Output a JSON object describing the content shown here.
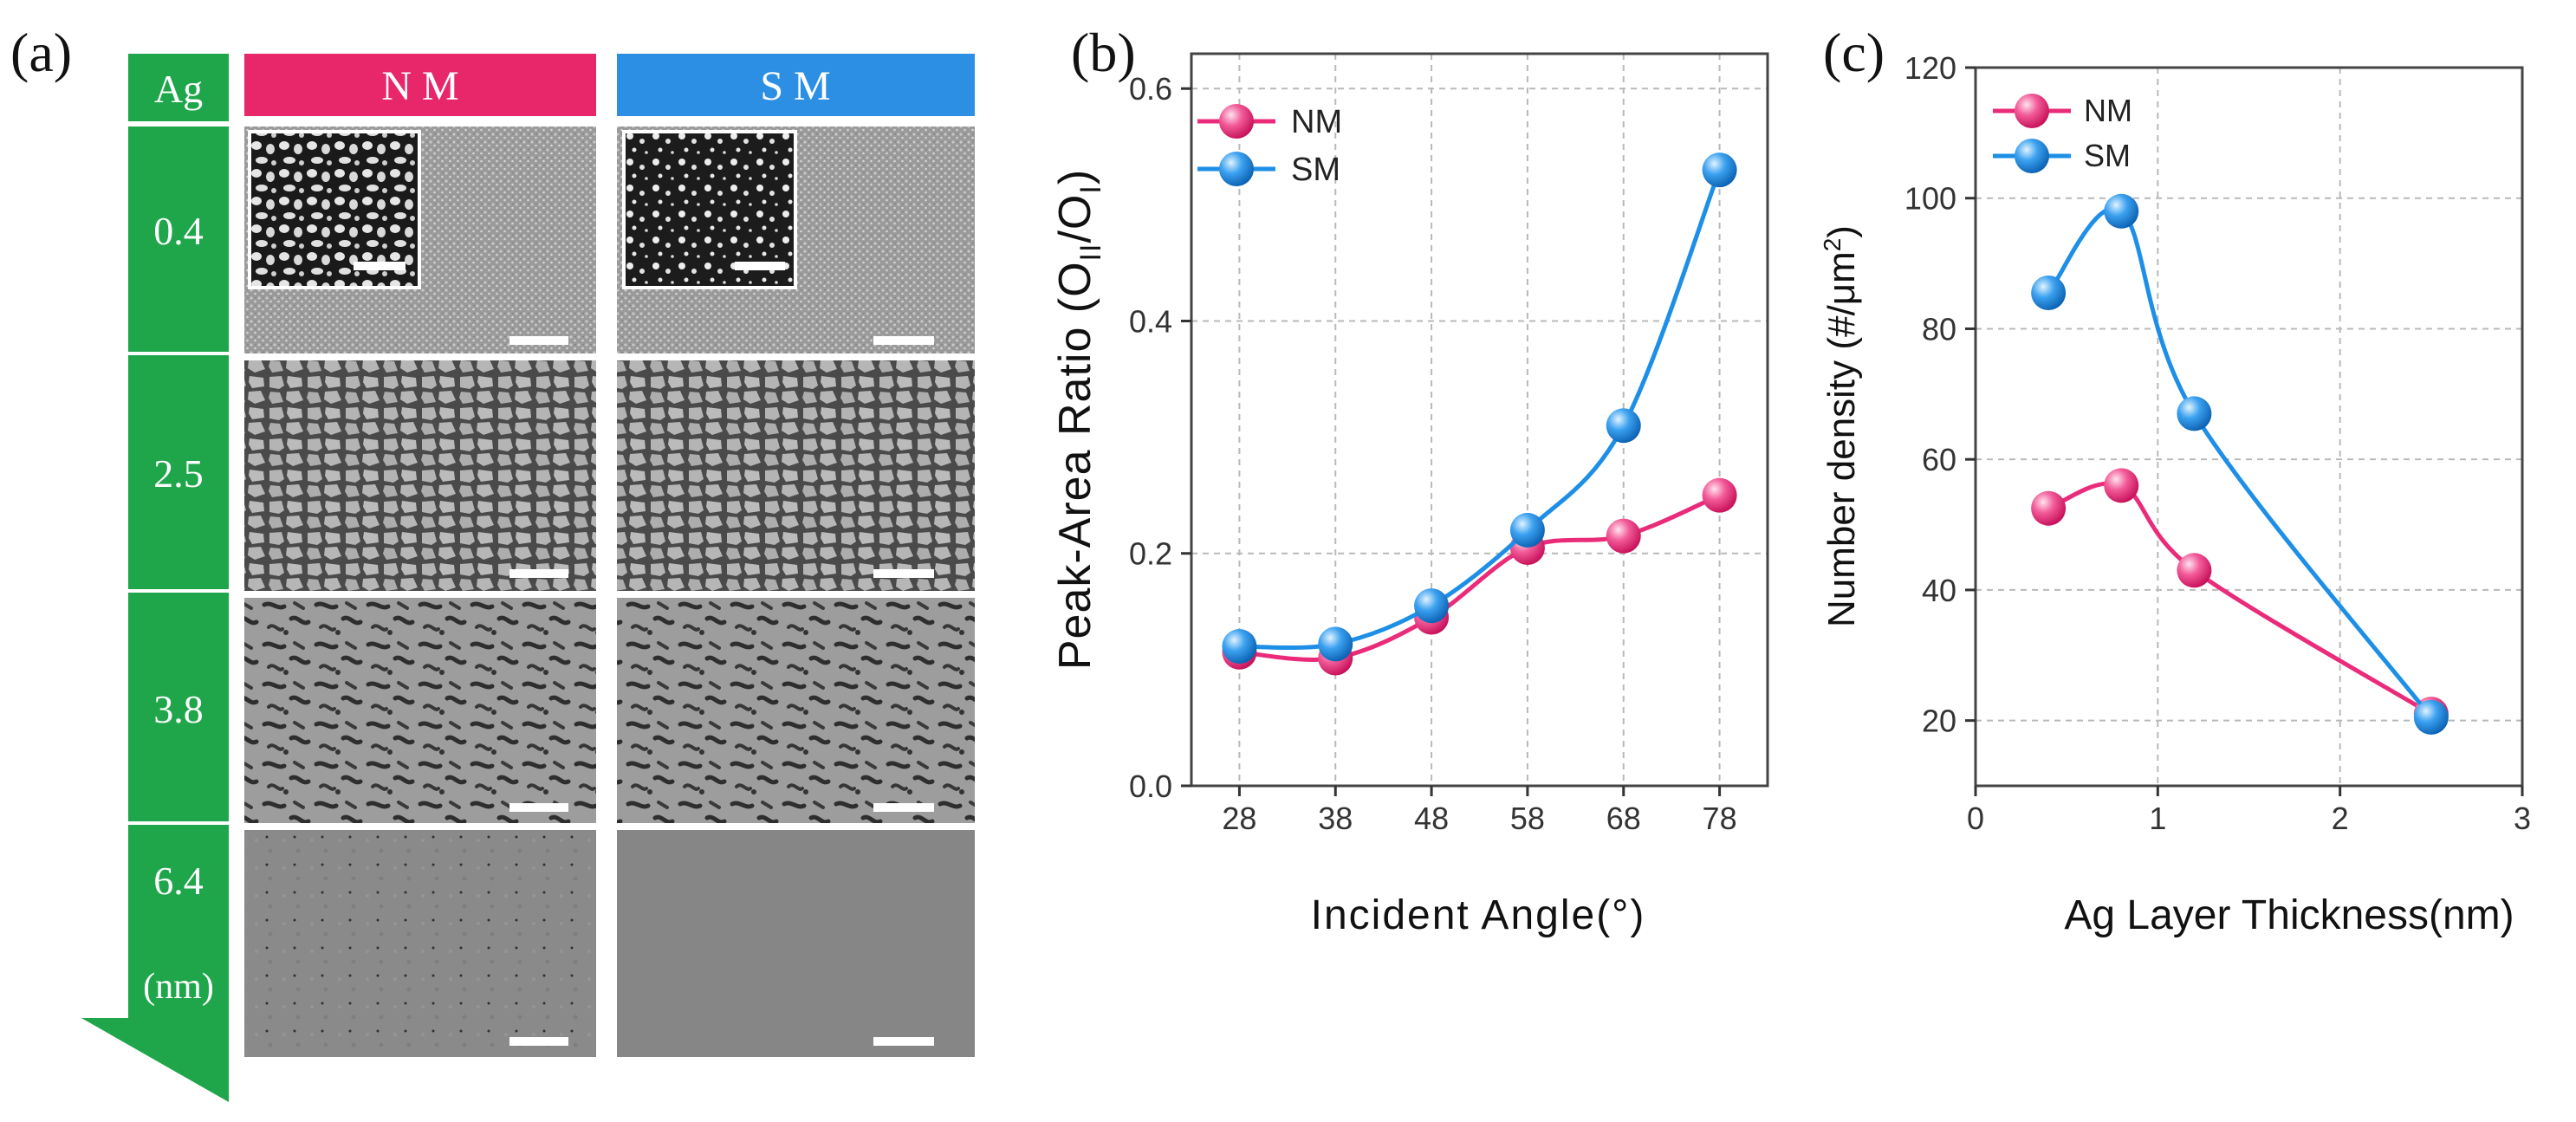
{
  "panel_a": {
    "label": "(a)",
    "ag_header": "Ag",
    "col_headers": [
      "N M",
      "S M"
    ],
    "thickness_labels": [
      "0.4",
      "2.5",
      "3.8",
      "6.4"
    ],
    "unit_label": "(nm)",
    "colors": {
      "green": "#1fa64a",
      "nm_header": "#e8276a",
      "sm_header": "#2d8fe3"
    }
  },
  "chart_data": [
    {
      "type": "line",
      "panel_label": "(b)",
      "xlabel": "Incident Angle(°)",
      "ylabel_main": "Peak-Area  Ratio (O",
      "ylabel_sub1": "II",
      "ylabel_mid": "/O",
      "ylabel_sub2": "I",
      "ylabel_end": ")",
      "x": [
        28,
        38,
        48,
        58,
        68,
        78
      ],
      "xlim": [
        23,
        83
      ],
      "ylim": [
        0,
        0.63
      ],
      "xticks": [
        28,
        38,
        48,
        58,
        68,
        78
      ],
      "yticks": [
        0.0,
        0.2,
        0.4,
        0.6
      ],
      "ytick_labels": [
        "0.0",
        "0.2",
        "0.4",
        "0.6"
      ],
      "grid": true,
      "legend_position": "top-left",
      "series": [
        {
          "name": "NM",
          "color": "#ea2b7a",
          "values": [
            0.115,
            0.11,
            0.145,
            0.205,
            0.215,
            0.25
          ]
        },
        {
          "name": "SM",
          "color": "#1e8fe6",
          "values": [
            0.12,
            0.122,
            0.155,
            0.22,
            0.31,
            0.53
          ]
        }
      ]
    },
    {
      "type": "line",
      "panel_label": "(c)",
      "xlabel": "Ag Layer Thickness(nm)",
      "ylabel_main": "Number density (#/μm",
      "ylabel_sup": "2",
      "ylabel_end": ")",
      "xlim": [
        0,
        3
      ],
      "ylim": [
        10,
        120
      ],
      "xticks": [
        0,
        1,
        2,
        3
      ],
      "xtick_labels": [
        "0",
        "1",
        "2",
        "3"
      ],
      "yticks": [
        20,
        40,
        60,
        80,
        100,
        120
      ],
      "ytick_labels": [
        "20",
        "40",
        "60",
        "80",
        "100",
        "120"
      ],
      "grid": true,
      "legend_position": "top-left",
      "series": [
        {
          "name": "NM",
          "color": "#ea2b7a",
          "x": [
            0.4,
            0.8,
            1.2,
            2.5
          ],
          "values": [
            52.5,
            56,
            43,
            21
          ]
        },
        {
          "name": "SM",
          "color": "#1e8fe6",
          "x": [
            0.4,
            0.8,
            1.2,
            2.5
          ],
          "values": [
            85.5,
            98,
            67,
            20.5
          ]
        }
      ]
    }
  ]
}
